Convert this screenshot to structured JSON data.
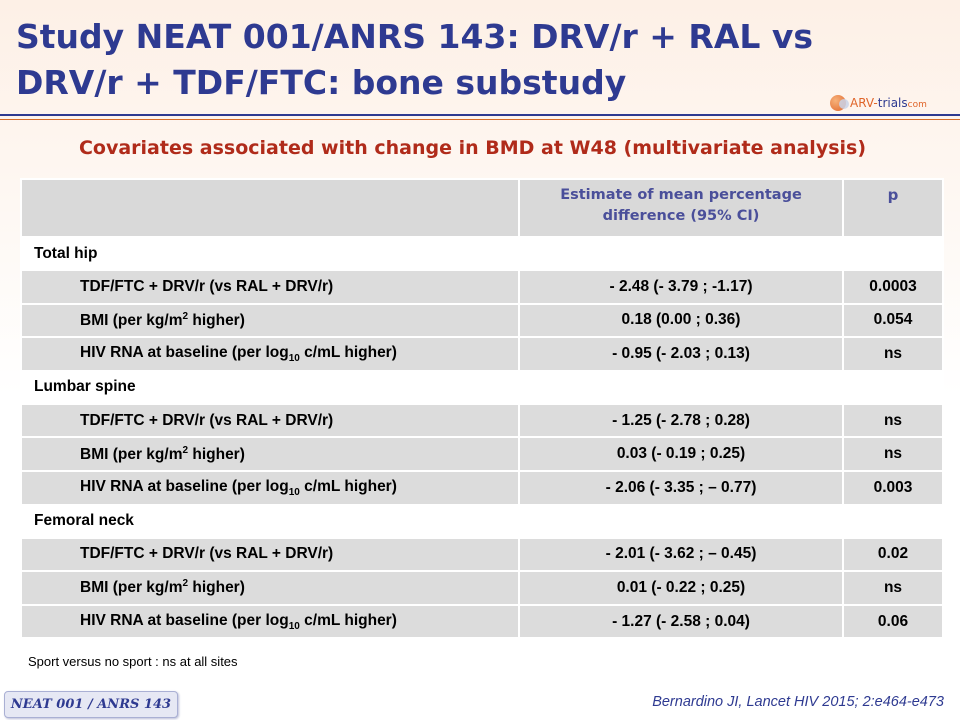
{
  "title": "Study NEAT 001/ANRS 143: DRV/r + RAL vs DRV/r + TDF/FTC: bone substudy",
  "logo": {
    "part1": "ARV-",
    "part2": "trials",
    "part3": "com"
  },
  "subtitle": "Covariates associated with change in BMD at W48 (multivariate analysis)",
  "table": {
    "header": {
      "col1": "",
      "col2": "Estimate of mean percentage difference (95% CI)",
      "col3": "p"
    },
    "sections": [
      {
        "name": "Total hip",
        "rows": [
          {
            "l1": "TDF/FTC + DRV/r (vs RAL + DRV/r)",
            "sup": "",
            "sub": "",
            "l2": "",
            "estimate": "- 2.48 (- 3.79 ; -1.17)",
            "p": "0.0003"
          },
          {
            "l1": "BMI (per kg/m",
            "sup": "2",
            "sub": "",
            "l2": " higher)",
            "estimate": "0.18 (0.00 ; 0.36)",
            "p": "0.054"
          },
          {
            "l1": "HIV RNA at baseline (per log",
            "sup": "",
            "sub": "10",
            "l2": " c/mL higher)",
            "estimate": "- 0.95 (- 2.03 ; 0.13)",
            "p": "ns"
          }
        ]
      },
      {
        "name": "Lumbar spine",
        "rows": [
          {
            "l1": "TDF/FTC + DRV/r (vs RAL + DRV/r)",
            "sup": "",
            "sub": "",
            "l2": "",
            "estimate": "- 1.25 (- 2.78 ; 0.28)",
            "p": "ns"
          },
          {
            "l1": "BMI (per kg/m",
            "sup": "2",
            "sub": "",
            "l2": " higher)",
            "estimate": "0.03 (- 0.19 ; 0.25)",
            "p": "ns"
          },
          {
            "l1": "HIV RNA at baseline (per log",
            "sup": "",
            "sub": "10",
            "l2": " c/mL higher)",
            "estimate": "- 2.06 (- 3.35 ; – 0.77)",
            "p": "0.003"
          }
        ]
      },
      {
        "name": "Femoral neck",
        "rows": [
          {
            "l1": "TDF/FTC + DRV/r (vs RAL + DRV/r)",
            "sup": "",
            "sub": "",
            "l2": "",
            "estimate": "- 2.01 (- 3.62 ; – 0.45)",
            "p": "0.02"
          },
          {
            "l1": "BMI (per kg/m",
            "sup": "2",
            "sub": "",
            "l2": " higher)",
            "estimate": "0.01 (- 0.22 ; 0.25)",
            "p": "ns"
          },
          {
            "l1": "HIV RNA at baseline (per log",
            "sup": "",
            "sub": "10",
            "l2": " c/mL higher)",
            "estimate": "- 1.27 (- 2.58 ; 0.04)",
            "p": "0.06"
          }
        ]
      }
    ]
  },
  "footnote": "Sport versus no sport : ns at all sites",
  "badge": "NEAT 001 / ANRS 143",
  "reference": "Bernardino JI, Lancet HIV 2015; 2:e464-e473",
  "colors": {
    "title": "#2e3a91",
    "subtitle": "#b02b1a",
    "header_text": "#4a4f9a",
    "row_bg": "#dcdcdc",
    "accent": "#d36b2a"
  }
}
